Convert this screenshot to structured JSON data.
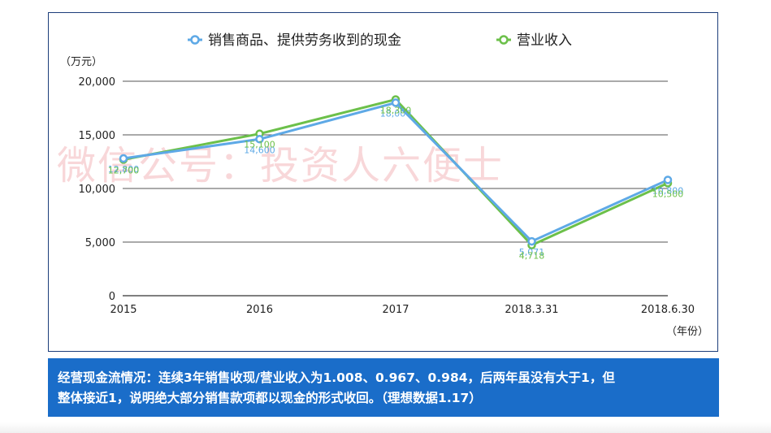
{
  "chart_data": {
    "type": "line",
    "categories": [
      "2015",
      "2016",
      "2017",
      "2018.3.31",
      "2018.6.30"
    ],
    "series": [
      {
        "name": "销售商品、提供劳务收到的现金",
        "color": "#5ea9e6",
        "values": [
          12800,
          14600,
          18000,
          5071,
          10800
        ],
        "labels": [
          "12,800",
          "14,600",
          "18,000",
          "5,071",
          "10,800"
        ]
      },
      {
        "name": "营业收入",
        "color": "#6cc04a",
        "values": [
          12700,
          15100,
          18300,
          4718,
          10500
        ],
        "labels": [
          "12,700",
          "15,100",
          "18,300",
          "4,718",
          "10,500"
        ]
      }
    ],
    "ylim": [
      0,
      20000
    ],
    "yticks": [
      0,
      5000,
      10000,
      15000,
      20000
    ],
    "ytick_labels": [
      "0",
      "5,000",
      "10,000",
      "15,000",
      "20,000"
    ],
    "ylabel": "（万元）",
    "xlabel": "（年份）",
    "legend_position": "top",
    "grid": "horizontal"
  },
  "watermark": "微信公号：投资人六便士",
  "summary": {
    "line1": "经营现金流情况：连续3年销售收现/营业收入为1.008、0.967、0.984，后两年虽没有大于1，但",
    "line2": "整体接近1，说明绝大部分销售款项都以现金的形式收回。（理想数据1.17）"
  }
}
